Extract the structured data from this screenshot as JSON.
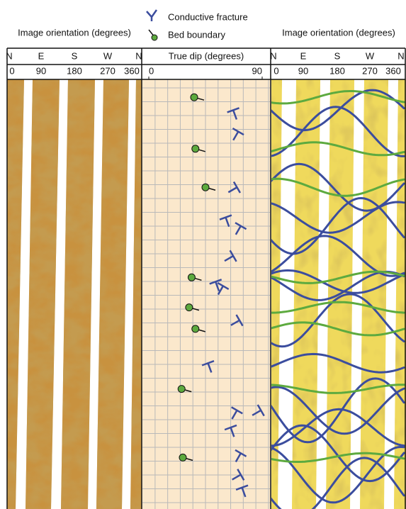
{
  "legend": [
    {
      "name": "Conductive fracture",
      "color": "#3b4d9e"
    },
    {
      "name": "Bed boundary",
      "color": "#5daa3f"
    }
  ],
  "image_panels": [
    {
      "title": "Image orientation (degrees)",
      "directions": [
        "N",
        "E",
        "S",
        "W",
        "N"
      ],
      "ticks": [
        0,
        90,
        180,
        270,
        360
      ]
    },
    {
      "title": "Image orientation (degrees)",
      "directions": [
        "N",
        "E",
        "S",
        "W",
        "N"
      ],
      "ticks": [
        0,
        90,
        180,
        270,
        360
      ]
    }
  ],
  "chart_data": {
    "type": "tadpole",
    "xlabel": "True dip (degrees)",
    "xlim": [
      0,
      90
    ],
    "xticks": [
      0,
      90
    ],
    "ylim": [
      0,
      100
    ],
    "grid": true,
    "series": [
      {
        "name": "Conductive fracture",
        "color": "#3b4d9e",
        "x": [
          67,
          71,
          70,
          61,
          73,
          67,
          53,
          59,
          72,
          47,
          70,
          89,
          65,
          73,
          73,
          74
        ],
        "y": [
          7,
          12,
          25,
          32,
          34,
          41,
          47,
          48,
          56,
          66,
          77,
          77,
          81,
          87,
          92,
          95
        ]
      },
      {
        "name": "Bed boundary",
        "color": "#5daa3f",
        "x": [
          36,
          37,
          45,
          34,
          32,
          37,
          26,
          27
        ],
        "y": [
          4,
          16,
          25,
          46,
          53,
          58,
          72,
          88
        ]
      }
    ]
  }
}
